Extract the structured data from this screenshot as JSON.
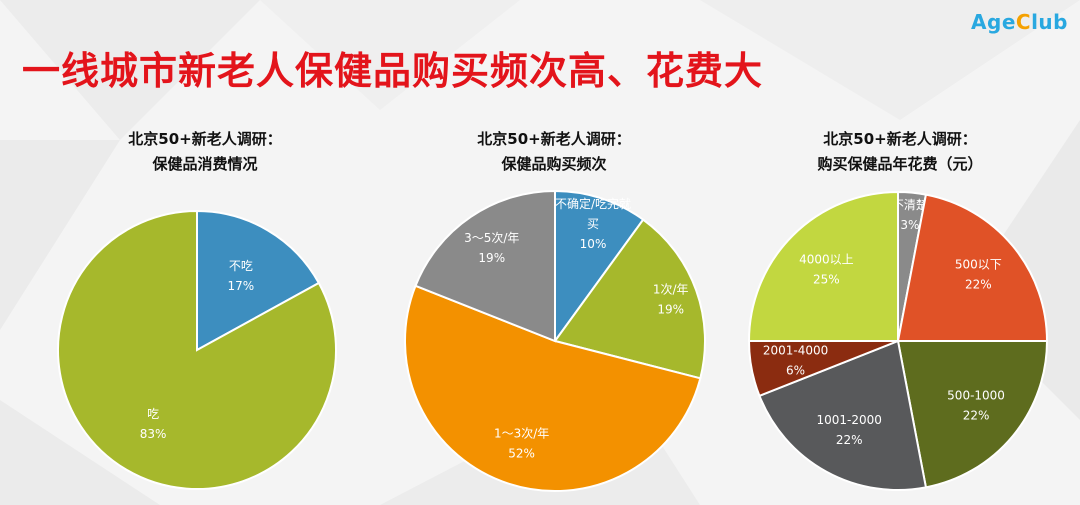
{
  "logo": {
    "part1": "Age",
    "part2": "C",
    "part3": "lub"
  },
  "title": "一线城市新老人保健品购买频次高、花费大",
  "colors": {
    "title": "#e3141b",
    "blue": "#3d8ebf",
    "olive": "#a6b82c",
    "orange": "#f39100",
    "gray": "#8a8a8a",
    "lime": "#c2d740",
    "red_orange": "#e05227",
    "dark_olive": "#5e6c1e",
    "dark_gray": "#58595b",
    "brown": "#8b2c10"
  },
  "chart_data": [
    {
      "type": "pie",
      "title": [
        "北京50+新老人调研：",
        "保健品消费情况"
      ],
      "start_angle_deg": 0,
      "slices": [
        {
          "label": [
            "不吃"
          ],
          "value": 17,
          "pct": "17%",
          "color": "#3d8ebf"
        },
        {
          "label": [
            "吃"
          ],
          "value": 83,
          "pct": "83%",
          "color": "#a6b82c"
        }
      ]
    },
    {
      "type": "pie",
      "title": [
        "北京50+新老人调研：",
        "保健品购买频次"
      ],
      "start_angle_deg": 0,
      "slices": [
        {
          "label": [
            "不确定/吃完就",
            "买"
          ],
          "value": 10,
          "pct": "10%",
          "color": "#3d8ebf"
        },
        {
          "label": [
            "1次/年"
          ],
          "value": 19,
          "pct": "19%",
          "color": "#a6b82c"
        },
        {
          "label": [
            "1～3次/年"
          ],
          "value": 52,
          "pct": "52%",
          "color": "#f39100"
        },
        {
          "label": [
            "3～5次/年"
          ],
          "value": 19,
          "pct": "19%",
          "color": "#8a8a8a"
        }
      ]
    },
    {
      "type": "pie",
      "title": [
        "北京50+新老人调研：",
        "购买保健品年花费（元）"
      ],
      "start_angle_deg": 0,
      "slices": [
        {
          "label": [
            "不清楚"
          ],
          "value": 3,
          "pct": "3%",
          "color": "#8a8a8a"
        },
        {
          "label": [
            "500以下"
          ],
          "value": 22,
          "pct": "22%",
          "color": "#e05227"
        },
        {
          "label": [
            "500-1000"
          ],
          "value": 22,
          "pct": "22%",
          "color": "#5e6c1e"
        },
        {
          "label": [
            "1001-2000"
          ],
          "value": 22,
          "pct": "22%",
          "color": "#58595b"
        },
        {
          "label": [
            "2001-4000"
          ],
          "value": 6,
          "pct": "6%",
          "color": "#8b2c10"
        },
        {
          "label": [
            "4000以上"
          ],
          "value": 25,
          "pct": "25%",
          "color": "#c2d740"
        }
      ]
    }
  ]
}
